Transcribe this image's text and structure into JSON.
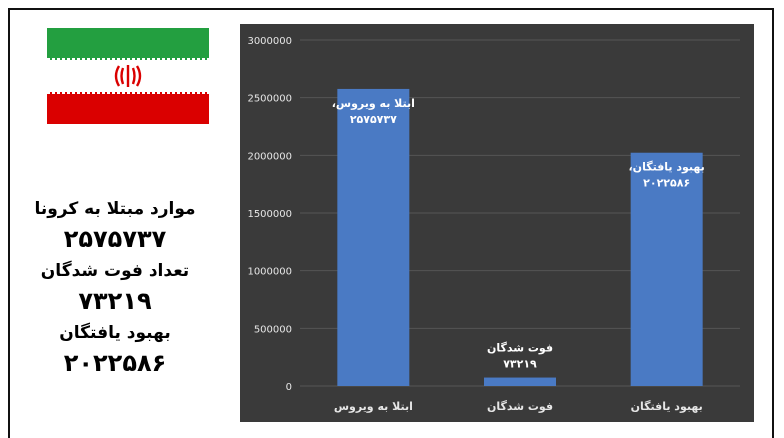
{
  "stats": {
    "infected_label": "موارد مبتلا به کرونا",
    "infected_value": "۲۵۷۵۷۳۷",
    "deaths_label": "تعداد فوت شدگان",
    "deaths_value": "۷۳۲۱۹",
    "recovered_label": "بهبود یافتگان",
    "recovered_value": "۲۰۲۲۵۸۶"
  },
  "flag": {
    "colors": {
      "green": "#239f40",
      "white": "#ffffff",
      "red": "#da0000"
    },
    "emblem": "iran-emblem-icon"
  },
  "chart_data": {
    "type": "bar",
    "categories": [
      "ابتلا به ویروس",
      "فوت شدگان",
      "بهبود یافتگان"
    ],
    "values": [
      2575737,
      73219,
      2022586
    ],
    "data_labels": [
      "ابتلا به ویروس، ۲۵۷۵۷۳۷",
      "فوت شدگان ۷۳۲۱۹",
      "بهبود یافتگان، ۲۰۲۲۵۸۶"
    ],
    "yticks": [
      "0",
      "500000",
      "1000000",
      "1500000",
      "2000000",
      "2500000",
      "3000000"
    ],
    "ylim": [
      0,
      3000000
    ],
    "grid": true,
    "colors": {
      "background": "#3a3a3a",
      "bar": "#4a7ac4",
      "grid": "#555555",
      "text": "#e6e6e6"
    }
  }
}
